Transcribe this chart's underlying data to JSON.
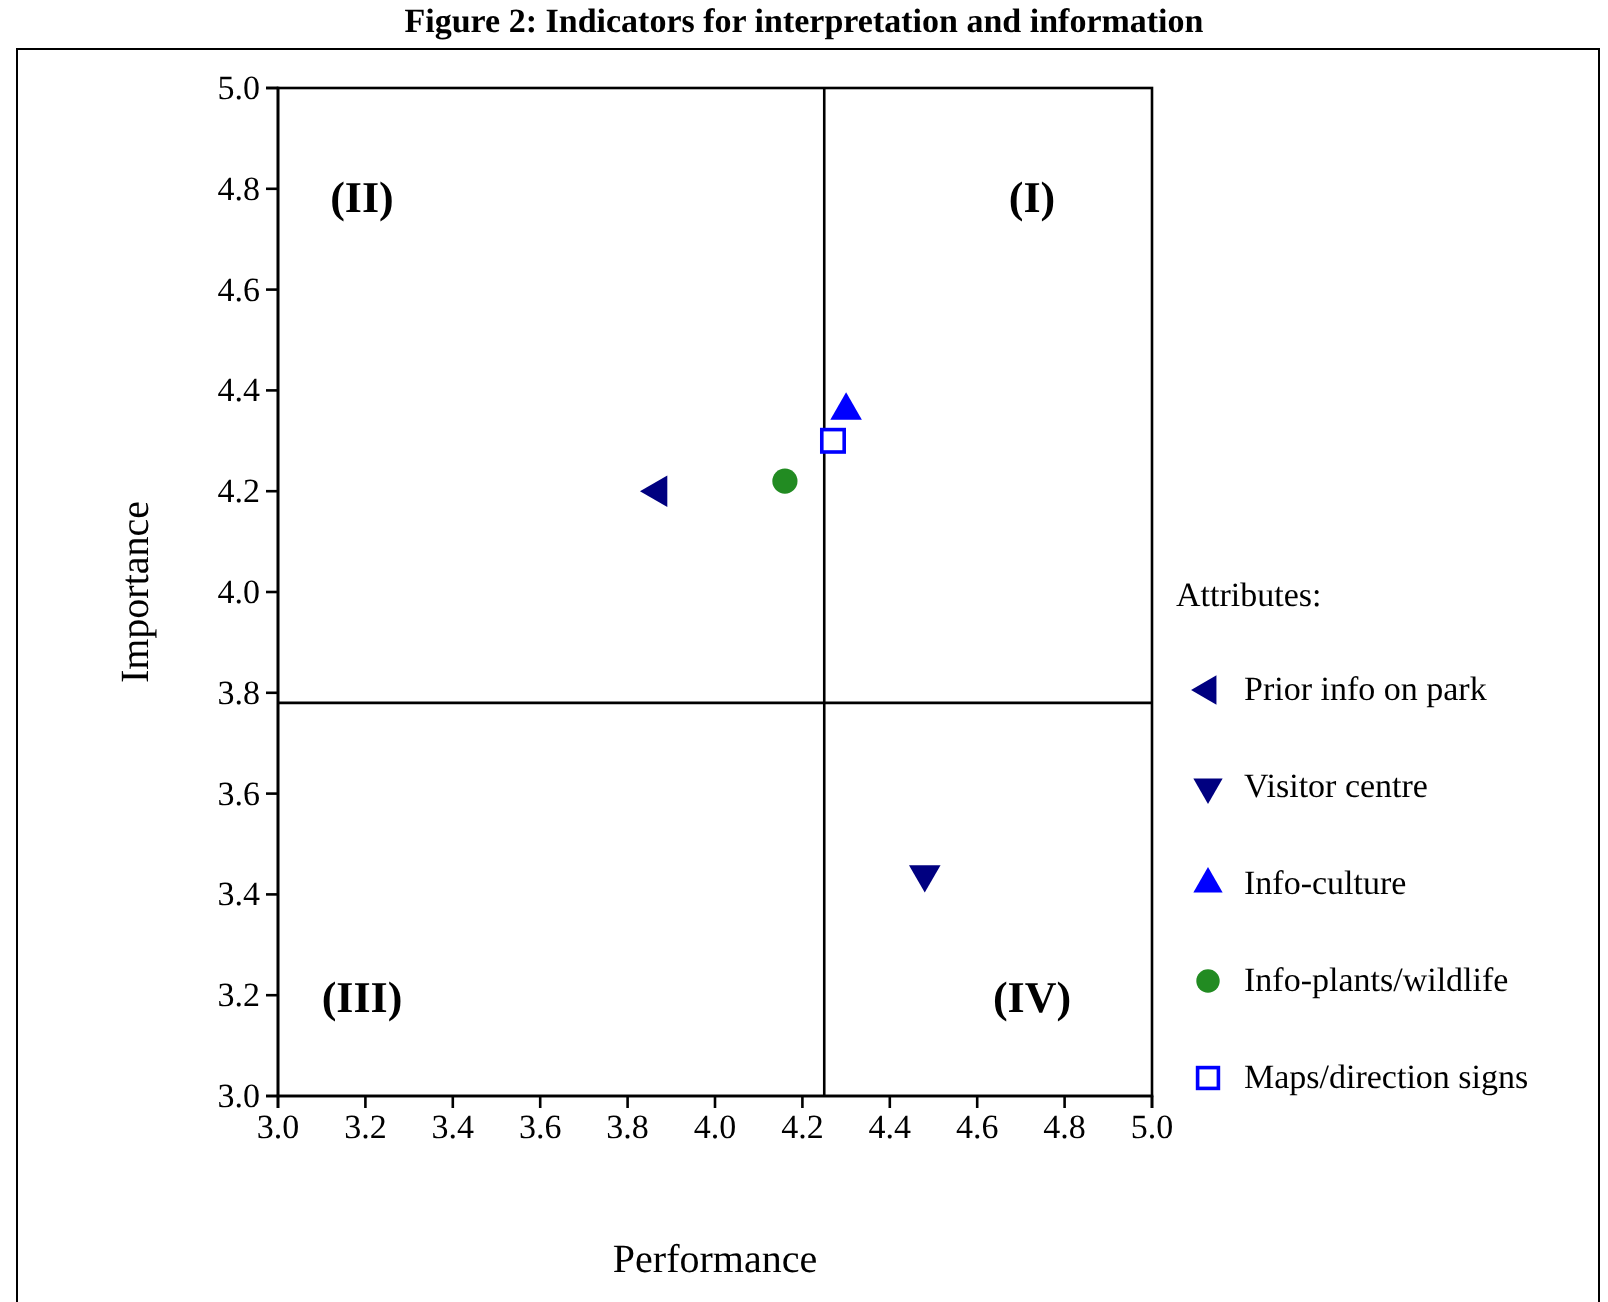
{
  "chart_data": {
    "type": "scatter",
    "title": "Figure 2: Indicators for interpretation and information",
    "xlabel": "Performance",
    "ylabel": "Importance",
    "legend_title": "Attributes:",
    "legend": "right",
    "grid": false,
    "xlim": [
      3.0,
      5.0
    ],
    "xticks": [
      {
        "value": 3,
        "label": "3.0"
      },
      {
        "value": 3.2,
        "label": "3.2"
      },
      {
        "value": 3.4,
        "label": "3.4"
      },
      {
        "value": 3.6,
        "label": "3.6"
      },
      {
        "value": 3.8,
        "label": "3.8"
      },
      {
        "value": 4,
        "label": "4.0"
      },
      {
        "value": 4.2,
        "label": "4.2"
      },
      {
        "value": 4.4,
        "label": "4.4"
      },
      {
        "value": 4.6,
        "label": "4.6"
      },
      {
        "value": 4.8,
        "label": "4.8"
      },
      {
        "value": 5,
        "label": "5.0"
      }
    ],
    "ylim": [
      3.0,
      5.0
    ],
    "yticks": [
      {
        "value": 3,
        "label": "3.0"
      },
      {
        "value": 3.2,
        "label": "3.2"
      },
      {
        "value": 3.4,
        "label": "3.4"
      },
      {
        "value": 3.6,
        "label": "3.6"
      },
      {
        "value": 3.8,
        "label": "3.8"
      },
      {
        "value": 4,
        "label": "4.0"
      },
      {
        "value": 4.2,
        "label": "4.2"
      },
      {
        "value": 4.4,
        "label": "4.4"
      },
      {
        "value": 4.6,
        "label": "4.6"
      },
      {
        "value": 4.8,
        "label": "4.8"
      },
      {
        "value": 5,
        "label": "5.0"
      }
    ],
    "ref_lines": [
      {
        "axis": "x",
        "value": 4.25,
        "color": "#000000"
      },
      {
        "axis": "y",
        "value": 3.78,
        "color": "#000000"
      }
    ],
    "annotations": [
      "(I)",
      "(II)",
      "(III)",
      "(IV)"
    ],
    "series": [
      {
        "name": "Prior info on park",
        "color": "#000080",
        "marker": "triangle-left",
        "x": [
          3.87
        ],
        "values": [
          4.2
        ]
      },
      {
        "name": "Visitor centre",
        "color": "#000080",
        "marker": "triangle-down",
        "x": [
          4.48
        ],
        "values": [
          3.44
        ]
      },
      {
        "name": "Info-culture",
        "color": "#0000ff",
        "marker": "triangle",
        "x": [
          4.3
        ],
        "values": [
          4.36
        ]
      },
      {
        "name": "Info-plants/wildlife",
        "color": "#228b22",
        "marker": "circle",
        "x": [
          4.16
        ],
        "values": [
          4.22
        ]
      },
      {
        "name": "Maps/direction signs",
        "color": "#0000ff",
        "marker": "square",
        "x": [
          4.27
        ],
        "values": [
          4.3
        ]
      }
    ]
  }
}
